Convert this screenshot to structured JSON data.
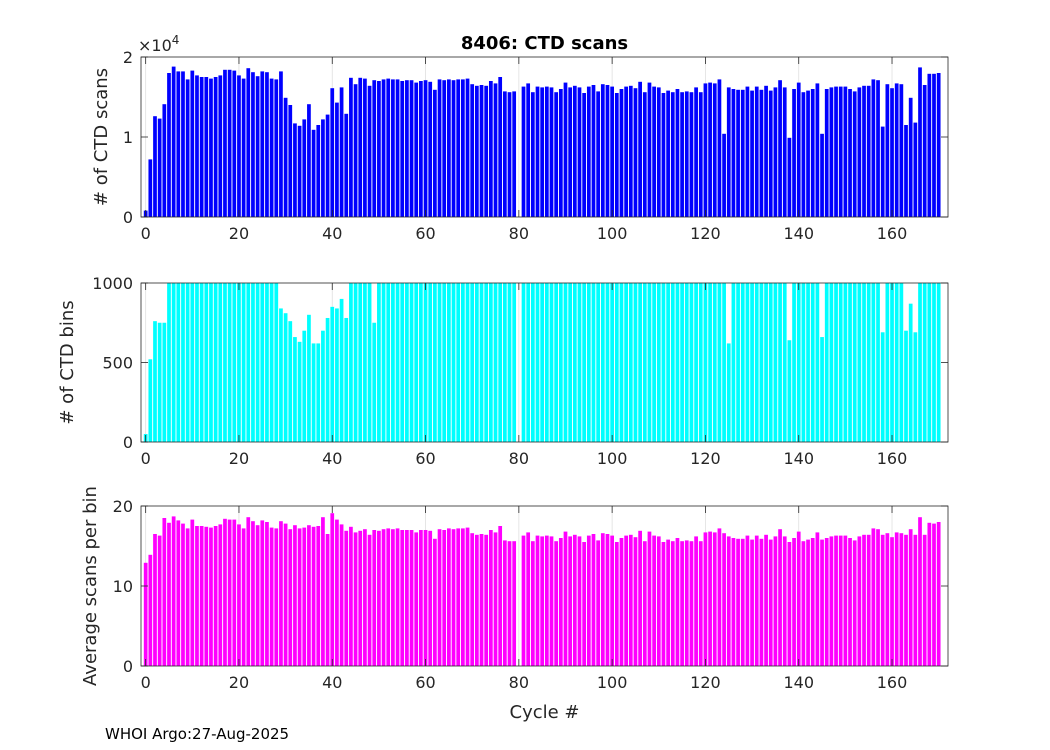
{
  "chart_data": [
    {
      "type": "bar",
      "title": "8406: CTD scans",
      "xlabel": "",
      "ylabel": "# of CTD scans",
      "exponent_label": "×10",
      "exponent_power": "4",
      "color": "#0000ff",
      "xlim": [
        -1,
        172
      ],
      "ylim": [
        0,
        20000
      ],
      "ytick_values": [
        0,
        10000,
        20000
      ],
      "ytick_labels": [
        "0",
        "1",
        "2"
      ],
      "xtick_values": [
        0,
        20,
        40,
        60,
        80,
        100,
        120,
        140,
        160
      ],
      "xtick_labels": [
        "0",
        "20",
        "40",
        "60",
        "80",
        "100",
        "120",
        "140",
        "160"
      ],
      "x": [
        0,
        1,
        2,
        3,
        4,
        5,
        6,
        7,
        8,
        9,
        10,
        11,
        12,
        13,
        14,
        15,
        16,
        17,
        18,
        19,
        20,
        21,
        22,
        23,
        24,
        25,
        26,
        27,
        28,
        29,
        30,
        31,
        32,
        33,
        34,
        35,
        36,
        37,
        38,
        39,
        40,
        41,
        42,
        43,
        44,
        45,
        46,
        47,
        48,
        49,
        50,
        51,
        52,
        53,
        54,
        55,
        56,
        57,
        58,
        59,
        60,
        61,
        62,
        63,
        64,
        65,
        66,
        67,
        68,
        69,
        70,
        71,
        72,
        73,
        74,
        75,
        76,
        77,
        78,
        79,
        80,
        81,
        82,
        83,
        84,
        85,
        86,
        87,
        88,
        89,
        90,
        91,
        92,
        93,
        94,
        95,
        96,
        97,
        98,
        99,
        100,
        101,
        102,
        103,
        104,
        105,
        106,
        107,
        108,
        109,
        110,
        111,
        112,
        113,
        114,
        115,
        116,
        117,
        118,
        119,
        120,
        121,
        122,
        123,
        124,
        125,
        126,
        127,
        128,
        129,
        130,
        131,
        132,
        133,
        134,
        135,
        136,
        137,
        138,
        139,
        140,
        141,
        142,
        143,
        144,
        145,
        146,
        147,
        148,
        149,
        150,
        151,
        152,
        153,
        154,
        155,
        156,
        157,
        158,
        159,
        160,
        161,
        162,
        163,
        164,
        165,
        166,
        167,
        168,
        169,
        170,
        171
      ],
      "values": [
        800,
        7200,
        12600,
        12300,
        14100,
        18000,
        18800,
        18200,
        18200,
        17200,
        18300,
        17700,
        17500,
        17500,
        17300,
        17500,
        17700,
        18400,
        18400,
        18300,
        17700,
        17300,
        18600,
        18100,
        17600,
        18200,
        18100,
        17300,
        17200,
        18200,
        14900,
        14000,
        11700,
        11400,
        12200,
        14100,
        10900,
        11500,
        12200,
        12800,
        16100,
        14300,
        16200,
        12900,
        17400,
        16600,
        17400,
        17300,
        16400,
        17100,
        17000,
        17200,
        17300,
        17200,
        17200,
        17000,
        17100,
        17100,
        16800,
        17000,
        17100,
        16900,
        15900,
        17200,
        17100,
        17200,
        17100,
        17200,
        17200,
        17300,
        16600,
        16400,
        16500,
        16400,
        17000,
        16700,
        17500,
        15700,
        15600,
        15700,
        0,
        16300,
        16700,
        15600,
        16300,
        16200,
        16300,
        16200,
        15600,
        16000,
        16800,
        16200,
        16400,
        16200,
        15500,
        16300,
        16500,
        15700,
        16600,
        16500,
        16300,
        15500,
        16000,
        16300,
        16400,
        16100,
        16900,
        15600,
        16800,
        16300,
        16200,
        15500,
        15800,
        15600,
        16000,
        15600,
        15700,
        15600,
        16200,
        15600,
        16700,
        16800,
        16700,
        17200,
        10400,
        16200,
        16000,
        15900,
        15900,
        16300,
        15800,
        16300,
        15900,
        16400,
        15800,
        16200,
        17100,
        16200,
        9900,
        16000,
        16800,
        15600,
        15800,
        16000,
        16700,
        10400,
        16000,
        16200,
        16300,
        16300,
        16300,
        16000,
        15700,
        16200,
        16400,
        16400,
        17200,
        17100,
        11300,
        16600,
        16100,
        16700,
        16600,
        11500,
        14900,
        11800,
        18700,
        16500,
        17900,
        17900,
        18000,
        0
      ]
    },
    {
      "type": "bar",
      "title": "",
      "xlabel": "",
      "ylabel": "# of CTD bins",
      "color": "#00ffff",
      "xlim": [
        -1,
        172
      ],
      "ylim": [
        0,
        1000
      ],
      "ytick_values": [
        0,
        500,
        1000
      ],
      "ytick_labels": [
        "0",
        "500",
        "1000"
      ],
      "xtick_values": [
        0,
        20,
        40,
        60,
        80,
        100,
        120,
        140,
        160
      ],
      "xtick_labels": [
        "0",
        "20",
        "40",
        "60",
        "80",
        "100",
        "120",
        "140",
        "160"
      ],
      "x": [
        0,
        1,
        2,
        3,
        4,
        5,
        6,
        7,
        8,
        9,
        10,
        11,
        12,
        13,
        14,
        15,
        16,
        17,
        18,
        19,
        20,
        21,
        22,
        23,
        24,
        25,
        26,
        27,
        28,
        29,
        30,
        31,
        32,
        33,
        34,
        35,
        36,
        37,
        38,
        39,
        40,
        41,
        42,
        43,
        44,
        45,
        46,
        47,
        48,
        49,
        50,
        51,
        52,
        53,
        54,
        55,
        56,
        57,
        58,
        59,
        60,
        61,
        62,
        63,
        64,
        65,
        66,
        67,
        68,
        69,
        70,
        71,
        72,
        73,
        74,
        75,
        76,
        77,
        78,
        79,
        80,
        81,
        82,
        83,
        84,
        85,
        86,
        87,
        88,
        89,
        90,
        91,
        92,
        93,
        94,
        95,
        96,
        97,
        98,
        99,
        100,
        101,
        102,
        103,
        104,
        105,
        106,
        107,
        108,
        109,
        110,
        111,
        112,
        113,
        114,
        115,
        116,
        117,
        118,
        119,
        120,
        121,
        122,
        123,
        124,
        125,
        126,
        127,
        128,
        129,
        130,
        131,
        132,
        133,
        134,
        135,
        136,
        137,
        138,
        139,
        140,
        141,
        142,
        143,
        144,
        145,
        146,
        147,
        148,
        149,
        150,
        151,
        152,
        153,
        154,
        155,
        156,
        157,
        158,
        159,
        160,
        161,
        162,
        163,
        164,
        165,
        166,
        167,
        168,
        169,
        170,
        171
      ],
      "values": [
        50,
        520,
        760,
        750,
        750,
        1000,
        1000,
        1000,
        1000,
        1000,
        1000,
        1000,
        1000,
        1000,
        1000,
        1000,
        1000,
        1000,
        1000,
        1000,
        1000,
        1000,
        1000,
        1000,
        1000,
        1000,
        1000,
        1000,
        1000,
        840,
        810,
        760,
        660,
        630,
        700,
        800,
        620,
        620,
        700,
        780,
        850,
        840,
        900,
        780,
        1000,
        1000,
        1000,
        1000,
        1000,
        750,
        1000,
        1000,
        1000,
        1000,
        1000,
        1000,
        1000,
        1000,
        1000,
        1000,
        1000,
        1000,
        1000,
        1000,
        1000,
        1000,
        1000,
        1000,
        1000,
        1000,
        1000,
        1000,
        1000,
        1000,
        1000,
        1000,
        1000,
        1000,
        1000,
        1000,
        0,
        1000,
        1000,
        1000,
        1000,
        1000,
        1000,
        1000,
        1000,
        1000,
        1000,
        1000,
        1000,
        1000,
        1000,
        1000,
        1000,
        1000,
        1000,
        1000,
        1000,
        1000,
        1000,
        1000,
        1000,
        1000,
        1000,
        1000,
        1000,
        1000,
        1000,
        1000,
        1000,
        1000,
        1000,
        1000,
        1000,
        1000,
        1000,
        1000,
        1000,
        1000,
        1000,
        1000,
        1000,
        620,
        1000,
        1000,
        1000,
        1000,
        1000,
        1000,
        1000,
        1000,
        1000,
        1000,
        1000,
        1000,
        640,
        1000,
        1000,
        1000,
        1000,
        1000,
        1000,
        660,
        1000,
        1000,
        1000,
        1000,
        1000,
        1000,
        1000,
        1000,
        1000,
        1000,
        1000,
        1000,
        690,
        1000,
        1000,
        1000,
        1000,
        700,
        870,
        690,
        1000,
        1000,
        1000,
        1000,
        1000,
        0
      ]
    },
    {
      "type": "bar",
      "title": "",
      "xlabel": "Cycle #",
      "ylabel": "Average scans per bin",
      "color": "#ff00ff",
      "xlim": [
        -1,
        172
      ],
      "ylim": [
        0,
        20
      ],
      "ytick_values": [
        0,
        10,
        20
      ],
      "ytick_labels": [
        "0",
        "10",
        "20"
      ],
      "xtick_values": [
        0,
        20,
        40,
        60,
        80,
        100,
        120,
        140,
        160
      ],
      "xtick_labels": [
        "0",
        "20",
        "40",
        "60",
        "80",
        "100",
        "120",
        "140",
        "160"
      ],
      "x": [
        0,
        1,
        2,
        3,
        4,
        5,
        6,
        7,
        8,
        9,
        10,
        11,
        12,
        13,
        14,
        15,
        16,
        17,
        18,
        19,
        20,
        21,
        22,
        23,
        24,
        25,
        26,
        27,
        28,
        29,
        30,
        31,
        32,
        33,
        34,
        35,
        36,
        37,
        38,
        39,
        40,
        41,
        42,
        43,
        44,
        45,
        46,
        47,
        48,
        49,
        50,
        51,
        52,
        53,
        54,
        55,
        56,
        57,
        58,
        59,
        60,
        61,
        62,
        63,
        64,
        65,
        66,
        67,
        68,
        69,
        70,
        71,
        72,
        73,
        74,
        75,
        76,
        77,
        78,
        79,
        80,
        81,
        82,
        83,
        84,
        85,
        86,
        87,
        88,
        89,
        90,
        91,
        92,
        93,
        94,
        95,
        96,
        97,
        98,
        99,
        100,
        101,
        102,
        103,
        104,
        105,
        106,
        107,
        108,
        109,
        110,
        111,
        112,
        113,
        114,
        115,
        116,
        117,
        118,
        119,
        120,
        121,
        122,
        123,
        124,
        125,
        126,
        127,
        128,
        129,
        130,
        131,
        132,
        133,
        134,
        135,
        136,
        137,
        138,
        139,
        140,
        141,
        142,
        143,
        144,
        145,
        146,
        147,
        148,
        149,
        150,
        151,
        152,
        153,
        154,
        155,
        156,
        157,
        158,
        159,
        160,
        161,
        162,
        163,
        164,
        165,
        166,
        167,
        168,
        169,
        170,
        171
      ],
      "values": [
        12.9,
        13.9,
        16.5,
        16.3,
        18.5,
        17.9,
        18.7,
        18.2,
        17.8,
        17.2,
        18.3,
        17.5,
        17.5,
        17.4,
        17.3,
        17.5,
        17.7,
        18.4,
        18.3,
        18.3,
        17.7,
        17.2,
        18.6,
        18.1,
        17.6,
        18.2,
        18.0,
        17.3,
        17.2,
        18.1,
        17.8,
        17.1,
        17.6,
        17.2,
        17.3,
        17.6,
        17.4,
        17.5,
        18.6,
        16.5,
        19.1,
        18.3,
        17.7,
        16.9,
        17.4,
        16.7,
        16.9,
        17.1,
        16.4,
        17.0,
        16.9,
        17.1,
        17.2,
        17.1,
        17.2,
        17.0,
        17.0,
        17.0,
        16.7,
        17.0,
        17.0,
        16.9,
        15.9,
        17.1,
        17.0,
        17.2,
        17.1,
        17.2,
        17.2,
        17.3,
        16.6,
        16.4,
        16.5,
        16.4,
        17.0,
        16.7,
        17.5,
        15.7,
        15.6,
        15.6,
        0,
        16.3,
        16.7,
        15.6,
        16.3,
        16.2,
        16.3,
        16.2,
        15.6,
        16.0,
        16.8,
        16.2,
        16.4,
        16.2,
        15.5,
        16.3,
        16.5,
        15.7,
        16.6,
        16.5,
        16.3,
        15.5,
        16.0,
        16.3,
        16.4,
        16.1,
        16.9,
        15.6,
        16.8,
        16.3,
        16.2,
        15.5,
        15.8,
        15.6,
        16.0,
        15.6,
        15.7,
        15.6,
        16.2,
        15.6,
        16.7,
        16.8,
        16.7,
        17.2,
        16.6,
        16.2,
        16.0,
        15.9,
        15.9,
        16.3,
        15.8,
        16.3,
        15.9,
        16.4,
        15.8,
        16.2,
        17.1,
        16.2,
        15.5,
        16.0,
        16.8,
        15.6,
        15.8,
        16.0,
        16.7,
        15.8,
        16.0,
        16.2,
        16.3,
        16.3,
        16.3,
        16.0,
        15.7,
        16.2,
        16.4,
        16.4,
        17.2,
        17.1,
        16.4,
        16.6,
        16.1,
        16.7,
        16.6,
        16.4,
        17.1,
        16.4,
        18.6,
        16.4,
        17.9,
        17.8,
        18.0,
        0
      ]
    }
  ],
  "footer": {
    "text": "WHOI Argo:27-Aug-2025"
  }
}
